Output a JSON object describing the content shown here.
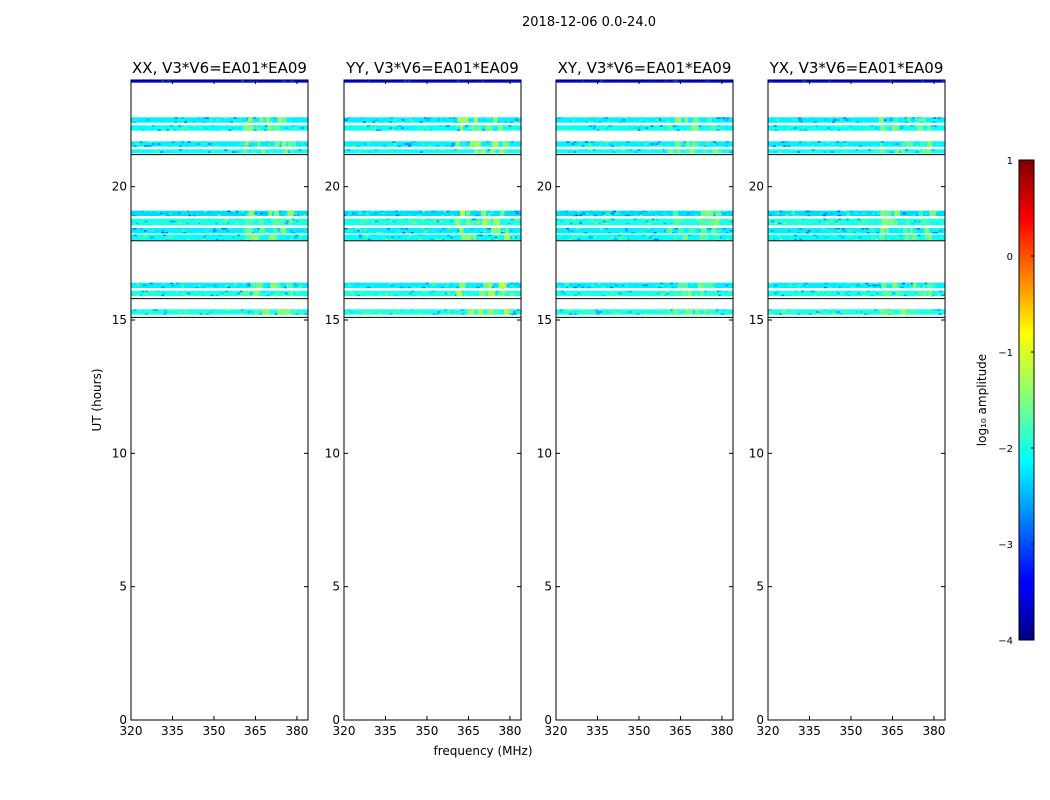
{
  "figure": {
    "title": "2018-12-06 0.0-24.0"
  },
  "chart_data": [
    {
      "type": "heatmap",
      "title": "XX, V3*V6=EA01*EA09",
      "xlabel": "frequency (MHz)",
      "ylabel": "UT (hours)",
      "xlim": [
        320,
        384
      ],
      "ylim": [
        0,
        24
      ],
      "xticks": [
        "320",
        "335",
        "350",
        "365",
        "380"
      ],
      "yticks": [
        "0",
        "5",
        "10",
        "15",
        "20"
      ],
      "bands": [
        {
          "t": [
            23.9,
            24.0
          ],
          "log_amp": -3.4
        },
        {
          "t": [
            22.4,
            22.6
          ],
          "log_amp": -2.2
        },
        {
          "t": [
            22.1,
            22.3
          ],
          "log_amp": -2.1
        },
        {
          "t": [
            21.5,
            21.7
          ],
          "log_amp": -2.2
        },
        {
          "t": [
            21.25,
            21.4
          ],
          "log_amp": -2.1
        },
        {
          "t": [
            18.9,
            19.1
          ],
          "log_amp": -2.3
        },
        {
          "t": [
            18.55,
            18.8
          ],
          "log_amp": -2.0
        },
        {
          "t": [
            18.25,
            18.45
          ],
          "log_amp": -2.2
        },
        {
          "t": [
            18.0,
            18.2
          ],
          "log_amp": -2.1
        },
        {
          "t": [
            16.2,
            16.4
          ],
          "log_amp": -2.2
        },
        {
          "t": [
            15.9,
            16.1
          ],
          "log_amp": -2.0
        },
        {
          "t": [
            15.2,
            15.4
          ],
          "log_amp": -2.0
        }
      ],
      "bright_freq": [
        360,
        380
      ],
      "bright_log_amp": -1.5
    },
    {
      "type": "heatmap",
      "title": "YY, V3*V6=EA01*EA09",
      "xlabel": "frequency (MHz)",
      "ylabel": "UT (hours)",
      "xlim": [
        320,
        384
      ],
      "ylim": [
        0,
        24
      ],
      "xticks": [
        "320",
        "335",
        "350",
        "365",
        "380"
      ],
      "yticks": [
        "0",
        "5",
        "10",
        "15",
        "20"
      ],
      "bands": [
        {
          "t": [
            23.9,
            24.0
          ],
          "log_amp": -3.4
        },
        {
          "t": [
            22.4,
            22.6
          ],
          "log_amp": -2.2
        },
        {
          "t": [
            22.1,
            22.3
          ],
          "log_amp": -2.1
        },
        {
          "t": [
            21.5,
            21.7
          ],
          "log_amp": -2.2
        },
        {
          "t": [
            21.25,
            21.4
          ],
          "log_amp": -2.1
        },
        {
          "t": [
            18.9,
            19.1
          ],
          "log_amp": -2.3
        },
        {
          "t": [
            18.55,
            18.8
          ],
          "log_amp": -2.0
        },
        {
          "t": [
            18.25,
            18.45
          ],
          "log_amp": -2.2
        },
        {
          "t": [
            18.0,
            18.2
          ],
          "log_amp": -2.1
        },
        {
          "t": [
            16.2,
            16.4
          ],
          "log_amp": -2.2
        },
        {
          "t": [
            15.9,
            16.1
          ],
          "log_amp": -2.0
        },
        {
          "t": [
            15.2,
            15.4
          ],
          "log_amp": -2.0
        }
      ],
      "bright_freq": [
        360,
        380
      ],
      "bright_log_amp": -1.3
    },
    {
      "type": "heatmap",
      "title": "XY, V3*V6=EA01*EA09",
      "xlabel": "frequency (MHz)",
      "ylabel": "UT (hours)",
      "xlim": [
        320,
        384
      ],
      "ylim": [
        0,
        24
      ],
      "xticks": [
        "320",
        "335",
        "350",
        "365",
        "380"
      ],
      "yticks": [
        "0",
        "5",
        "10",
        "15",
        "20"
      ],
      "bands": [
        {
          "t": [
            23.9,
            24.0
          ],
          "log_amp": -3.4
        },
        {
          "t": [
            22.4,
            22.6
          ],
          "log_amp": -2.2
        },
        {
          "t": [
            22.1,
            22.3
          ],
          "log_amp": -2.1
        },
        {
          "t": [
            21.5,
            21.7
          ],
          "log_amp": -2.2
        },
        {
          "t": [
            21.25,
            21.4
          ],
          "log_amp": -2.1
        },
        {
          "t": [
            18.9,
            19.1
          ],
          "log_amp": -2.3
        },
        {
          "t": [
            18.55,
            18.8
          ],
          "log_amp": -2.0
        },
        {
          "t": [
            18.25,
            18.45
          ],
          "log_amp": -2.2
        },
        {
          "t": [
            18.0,
            18.2
          ],
          "log_amp": -2.1
        },
        {
          "t": [
            16.2,
            16.4
          ],
          "log_amp": -2.2
        },
        {
          "t": [
            15.9,
            16.1
          ],
          "log_amp": -2.0
        },
        {
          "t": [
            15.2,
            15.4
          ],
          "log_amp": -2.0
        }
      ],
      "bright_freq": [
        360,
        380
      ],
      "bright_log_amp": -1.6
    },
    {
      "type": "heatmap",
      "title": "YX, V3*V6=EA01*EA09",
      "xlabel": "frequency (MHz)",
      "ylabel": "UT (hours)",
      "xlim": [
        320,
        384
      ],
      "ylim": [
        0,
        24
      ],
      "xticks": [
        "320",
        "335",
        "350",
        "365",
        "380"
      ],
      "yticks": [
        "0",
        "5",
        "10",
        "15",
        "20"
      ],
      "bands": [
        {
          "t": [
            23.9,
            24.0
          ],
          "log_amp": -3.4
        },
        {
          "t": [
            22.4,
            22.6
          ],
          "log_amp": -2.2
        },
        {
          "t": [
            22.1,
            22.3
          ],
          "log_amp": -2.1
        },
        {
          "t": [
            21.5,
            21.7
          ],
          "log_amp": -2.2
        },
        {
          "t": [
            21.25,
            21.4
          ],
          "log_amp": -2.1
        },
        {
          "t": [
            18.9,
            19.1
          ],
          "log_amp": -2.3
        },
        {
          "t": [
            18.55,
            18.8
          ],
          "log_amp": -2.0
        },
        {
          "t": [
            18.25,
            18.45
          ],
          "log_amp": -2.2
        },
        {
          "t": [
            18.0,
            18.2
          ],
          "log_amp": -2.1
        },
        {
          "t": [
            16.2,
            16.4
          ],
          "log_amp": -2.2
        },
        {
          "t": [
            15.9,
            16.1
          ],
          "log_amp": -2.0
        },
        {
          "t": [
            15.2,
            15.4
          ],
          "log_amp": -2.0
        }
      ],
      "bright_freq": [
        360,
        380
      ],
      "bright_log_amp": -1.6
    }
  ],
  "colorbar": {
    "label": "log₁₀ amplitude",
    "range": [
      -4,
      1
    ],
    "ticks": [
      {
        "value": 1,
        "label": "1"
      },
      {
        "value": 0,
        "label": "0"
      },
      {
        "value": -1,
        "label": "−1"
      },
      {
        "value": -2,
        "label": "−2"
      },
      {
        "value": -3,
        "label": "−3"
      },
      {
        "value": -4,
        "label": "−4"
      }
    ],
    "colormap": "jet"
  }
}
